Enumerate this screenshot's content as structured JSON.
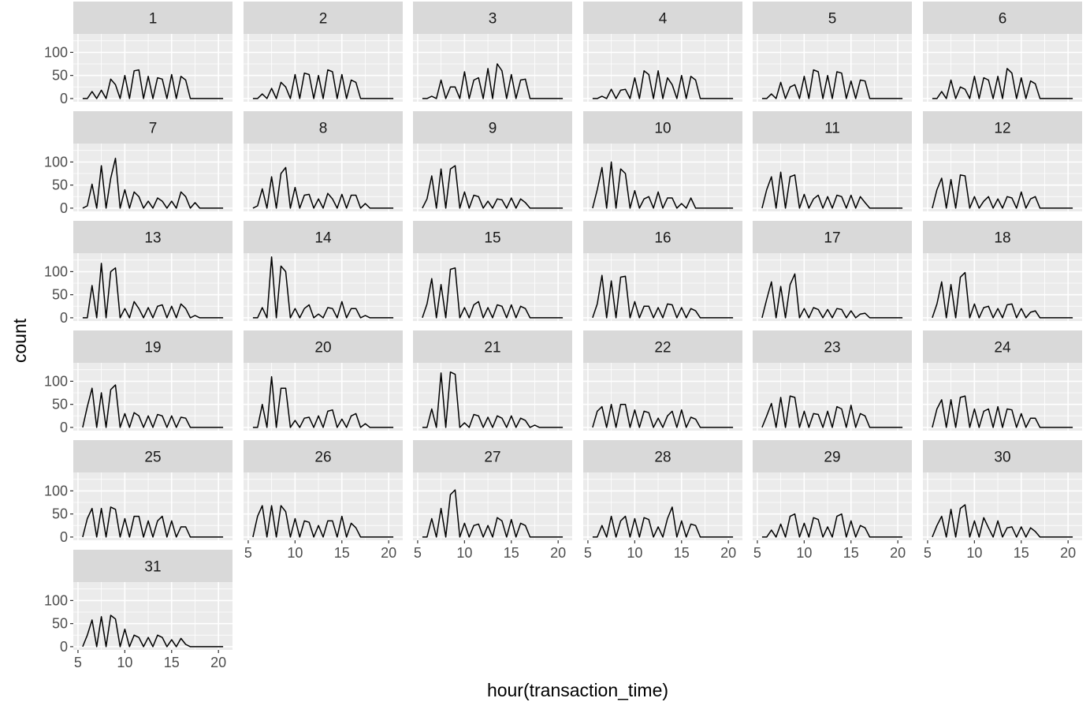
{
  "chart_data": {
    "type": "line",
    "layout": "facet-grid",
    "ncol": 6,
    "xlabel": "hour(transaction_time)",
    "ylabel": "count",
    "x_ticks": [
      5,
      10,
      15,
      20
    ],
    "y_ticks": [
      0,
      50,
      100
    ],
    "xlim": [
      4.5,
      21.5
    ],
    "ylim": [
      -7,
      140
    ],
    "grid": true,
    "colors": {
      "panel_bg": "#ebebeb",
      "strip_bg": "#d9d9d9",
      "grid": "#ffffff",
      "line": "#000000"
    },
    "x": [
      5.5,
      6,
      6.5,
      7,
      7.5,
      8,
      8.5,
      9,
      9.5,
      10,
      10.5,
      11,
      11.5,
      12,
      12.5,
      13,
      13.5,
      14,
      14.5,
      15,
      15.5,
      16,
      16.5,
      17,
      17.5,
      18,
      18.5,
      19,
      19.5,
      20,
      20.5
    ],
    "panels": [
      {
        "label": "1",
        "values": [
          0,
          0,
          15,
          0,
          18,
          0,
          42,
          30,
          0,
          50,
          0,
          60,
          62,
          0,
          48,
          0,
          45,
          42,
          0,
          52,
          0,
          48,
          40,
          0,
          0,
          0,
          0,
          0,
          0,
          0,
          0
        ]
      },
      {
        "label": "2",
        "values": [
          0,
          0,
          10,
          0,
          22,
          0,
          35,
          25,
          0,
          52,
          0,
          55,
          52,
          0,
          50,
          0,
          62,
          58,
          0,
          52,
          0,
          40,
          35,
          0,
          0,
          0,
          0,
          0,
          0,
          0,
          0
        ]
      },
      {
        "label": "3",
        "values": [
          0,
          0,
          5,
          0,
          40,
          0,
          25,
          25,
          0,
          58,
          0,
          40,
          45,
          0,
          65,
          0,
          75,
          60,
          0,
          52,
          0,
          40,
          42,
          0,
          0,
          0,
          0,
          0,
          0,
          0,
          0
        ]
      },
      {
        "label": "4",
        "values": [
          0,
          0,
          5,
          0,
          20,
          0,
          18,
          20,
          0,
          45,
          0,
          60,
          52,
          0,
          60,
          0,
          45,
          30,
          0,
          50,
          0,
          48,
          40,
          0,
          0,
          0,
          0,
          0,
          0,
          0,
          0
        ]
      },
      {
        "label": "5",
        "values": [
          0,
          0,
          10,
          0,
          35,
          0,
          25,
          30,
          0,
          48,
          0,
          62,
          58,
          0,
          50,
          0,
          58,
          55,
          0,
          38,
          0,
          40,
          38,
          0,
          0,
          0,
          0,
          0,
          0,
          0,
          0
        ]
      },
      {
        "label": "6",
        "values": [
          0,
          0,
          15,
          0,
          40,
          0,
          25,
          20,
          0,
          48,
          0,
          45,
          40,
          0,
          48,
          0,
          65,
          55,
          0,
          45,
          0,
          38,
          32,
          0,
          0,
          0,
          0,
          0,
          0,
          0,
          0
        ]
      },
      {
        "label": "7",
        "values": [
          0,
          5,
          52,
          0,
          92,
          0,
          65,
          108,
          0,
          40,
          0,
          35,
          25,
          0,
          15,
          0,
          22,
          15,
          0,
          15,
          0,
          35,
          25,
          0,
          12,
          0,
          0,
          0,
          0,
          0,
          0
        ]
      },
      {
        "label": "8",
        "values": [
          0,
          5,
          42,
          0,
          68,
          0,
          75,
          88,
          0,
          45,
          0,
          28,
          30,
          0,
          20,
          0,
          32,
          20,
          0,
          30,
          0,
          28,
          28,
          0,
          10,
          0,
          0,
          0,
          0,
          0,
          0
        ]
      },
      {
        "label": "9",
        "values": [
          0,
          20,
          70,
          0,
          85,
          0,
          85,
          92,
          0,
          35,
          0,
          28,
          25,
          0,
          15,
          0,
          20,
          18,
          0,
          22,
          0,
          20,
          12,
          0,
          0,
          0,
          0,
          0,
          0,
          0,
          0
        ]
      },
      {
        "label": "10",
        "values": [
          0,
          40,
          88,
          0,
          100,
          0,
          85,
          75,
          0,
          38,
          0,
          20,
          25,
          0,
          35,
          0,
          22,
          22,
          0,
          10,
          0,
          22,
          0,
          0,
          0,
          0,
          0,
          0,
          0,
          0,
          0
        ]
      },
      {
        "label": "11",
        "values": [
          0,
          40,
          68,
          0,
          78,
          0,
          68,
          72,
          0,
          30,
          0,
          20,
          28,
          0,
          25,
          0,
          28,
          25,
          0,
          28,
          0,
          25,
          12,
          0,
          0,
          0,
          0,
          0,
          0,
          0,
          0
        ]
      },
      {
        "label": "12",
        "values": [
          0,
          40,
          65,
          0,
          62,
          0,
          72,
          70,
          0,
          25,
          0,
          15,
          25,
          0,
          20,
          0,
          25,
          22,
          0,
          35,
          0,
          20,
          25,
          0,
          0,
          0,
          0,
          0,
          0,
          0,
          0
        ]
      },
      {
        "label": "13",
        "values": [
          0,
          0,
          70,
          0,
          118,
          0,
          100,
          108,
          0,
          20,
          0,
          35,
          20,
          0,
          22,
          0,
          25,
          28,
          0,
          25,
          0,
          30,
          20,
          0,
          5,
          0,
          0,
          0,
          0,
          0,
          0
        ]
      },
      {
        "label": "14",
        "values": [
          0,
          0,
          22,
          0,
          132,
          0,
          112,
          100,
          0,
          20,
          0,
          20,
          28,
          0,
          8,
          0,
          22,
          20,
          0,
          35,
          0,
          20,
          20,
          0,
          5,
          0,
          0,
          0,
          0,
          0,
          0
        ]
      },
      {
        "label": "15",
        "values": [
          0,
          30,
          85,
          0,
          72,
          0,
          105,
          108,
          0,
          22,
          0,
          28,
          35,
          0,
          22,
          0,
          28,
          25,
          0,
          28,
          0,
          25,
          20,
          0,
          0,
          0,
          0,
          0,
          0,
          0,
          0
        ]
      },
      {
        "label": "16",
        "values": [
          0,
          30,
          92,
          0,
          80,
          0,
          88,
          90,
          0,
          35,
          0,
          25,
          25,
          0,
          22,
          0,
          30,
          28,
          0,
          22,
          0,
          20,
          15,
          0,
          0,
          0,
          0,
          0,
          0,
          0,
          0
        ]
      },
      {
        "label": "17",
        "values": [
          0,
          40,
          78,
          0,
          68,
          0,
          72,
          95,
          0,
          20,
          0,
          22,
          18,
          0,
          18,
          0,
          20,
          18,
          0,
          15,
          0,
          8,
          10,
          0,
          0,
          0,
          0,
          0,
          0,
          0,
          0
        ]
      },
      {
        "label": "18",
        "values": [
          0,
          30,
          78,
          0,
          72,
          0,
          88,
          98,
          0,
          30,
          0,
          22,
          25,
          0,
          20,
          0,
          28,
          30,
          0,
          20,
          0,
          12,
          15,
          0,
          0,
          0,
          0,
          0,
          0,
          0,
          0
        ]
      },
      {
        "label": "19",
        "values": [
          0,
          45,
          85,
          0,
          75,
          0,
          82,
          92,
          0,
          30,
          0,
          32,
          25,
          0,
          25,
          0,
          28,
          25,
          0,
          25,
          0,
          22,
          20,
          0,
          0,
          0,
          0,
          0,
          0,
          0,
          0
        ]
      },
      {
        "label": "20",
        "values": [
          0,
          0,
          50,
          0,
          110,
          0,
          85,
          85,
          0,
          15,
          0,
          20,
          22,
          0,
          25,
          0,
          35,
          38,
          0,
          18,
          0,
          25,
          30,
          0,
          8,
          0,
          0,
          0,
          0,
          0,
          0
        ]
      },
      {
        "label": "21",
        "values": [
          0,
          0,
          40,
          0,
          118,
          0,
          120,
          115,
          0,
          10,
          0,
          28,
          25,
          0,
          22,
          0,
          25,
          20,
          0,
          25,
          0,
          20,
          15,
          0,
          5,
          0,
          0,
          0,
          0,
          0,
          0
        ]
      },
      {
        "label": "22",
        "values": [
          0,
          35,
          45,
          0,
          50,
          0,
          50,
          50,
          0,
          38,
          0,
          35,
          32,
          0,
          20,
          0,
          25,
          35,
          0,
          38,
          0,
          22,
          18,
          0,
          0,
          0,
          0,
          0,
          0,
          0,
          0
        ]
      },
      {
        "label": "23",
        "values": [
          0,
          25,
          52,
          0,
          65,
          0,
          68,
          65,
          0,
          35,
          0,
          30,
          28,
          0,
          35,
          0,
          45,
          40,
          0,
          48,
          0,
          30,
          25,
          0,
          0,
          0,
          0,
          0,
          0,
          0,
          0
        ]
      },
      {
        "label": "24",
        "values": [
          0,
          40,
          60,
          0,
          60,
          0,
          65,
          68,
          0,
          40,
          0,
          35,
          40,
          0,
          45,
          0,
          40,
          38,
          0,
          30,
          0,
          20,
          20,
          0,
          0,
          0,
          0,
          0,
          0,
          0,
          0
        ]
      },
      {
        "label": "25",
        "values": [
          0,
          40,
          62,
          0,
          62,
          0,
          65,
          60,
          0,
          40,
          0,
          45,
          45,
          0,
          35,
          0,
          35,
          45,
          0,
          35,
          0,
          22,
          22,
          0,
          0,
          0,
          0,
          0,
          0,
          0,
          0
        ]
      },
      {
        "label": "26",
        "values": [
          0,
          45,
          68,
          0,
          68,
          0,
          68,
          55,
          0,
          40,
          0,
          35,
          32,
          0,
          25,
          0,
          35,
          35,
          0,
          45,
          0,
          30,
          20,
          0,
          0,
          0,
          0,
          0,
          0,
          0,
          0
        ]
      },
      {
        "label": "27",
        "values": [
          0,
          0,
          40,
          0,
          62,
          0,
          92,
          102,
          0,
          30,
          0,
          25,
          28,
          0,
          25,
          0,
          42,
          35,
          0,
          38,
          0,
          30,
          25,
          0,
          0,
          0,
          0,
          0,
          0,
          0,
          0
        ]
      },
      {
        "label": "28",
        "values": [
          0,
          0,
          25,
          0,
          45,
          0,
          35,
          45,
          0,
          40,
          0,
          42,
          38,
          0,
          22,
          0,
          40,
          65,
          0,
          35,
          0,
          28,
          25,
          0,
          0,
          0,
          0,
          0,
          0,
          0,
          0
        ]
      },
      {
        "label": "29",
        "values": [
          0,
          0,
          15,
          0,
          28,
          0,
          45,
          50,
          0,
          30,
          0,
          42,
          38,
          0,
          22,
          0,
          45,
          50,
          0,
          35,
          0,
          25,
          20,
          0,
          0,
          0,
          0,
          0,
          0,
          0,
          0
        ]
      },
      {
        "label": "30",
        "values": [
          0,
          25,
          45,
          0,
          60,
          0,
          62,
          70,
          0,
          35,
          0,
          42,
          20,
          0,
          35,
          0,
          20,
          22,
          0,
          22,
          0,
          20,
          12,
          0,
          0,
          0,
          0,
          0,
          0,
          0,
          0
        ]
      },
      {
        "label": "31",
        "values": [
          0,
          25,
          58,
          0,
          65,
          0,
          68,
          60,
          0,
          38,
          0,
          25,
          20,
          0,
          20,
          0,
          25,
          20,
          0,
          15,
          0,
          18,
          5,
          0,
          0,
          0,
          0,
          0,
          0,
          0,
          0
        ]
      }
    ]
  }
}
